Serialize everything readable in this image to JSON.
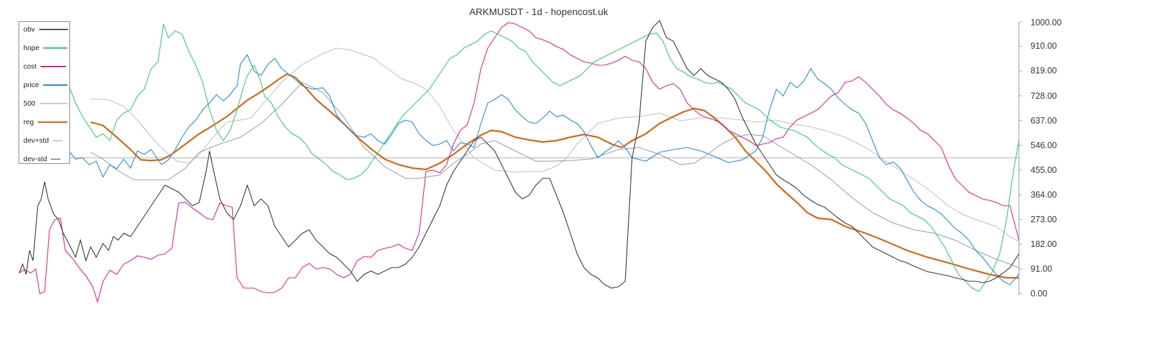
{
  "title": "ARKMUSDT - 1d - hopencost.uk",
  "legend": [
    {
      "label": "obv",
      "color": "#555555"
    },
    {
      "label": "hope",
      "color": "#2ecc71"
    },
    {
      "label": "cost",
      "color": "#e0218a"
    },
    {
      "label": "price",
      "color": "#1e88e5"
    },
    {
      "label": "500",
      "color": "#c8c8c8"
    },
    {
      "label": "reg",
      "color": "#d9630a"
    },
    {
      "label": "dev+std",
      "color": "#c5ccd3"
    },
    {
      "label": "dev-std",
      "color": "#8e9aa5"
    }
  ],
  "y_axis": {
    "ticks": [
      "1000.00",
      "910.00",
      "819.00",
      "728.00",
      "637.00",
      "546.00",
      "455.00",
      "364.00",
      "273.00",
      "182.00",
      "91.00",
      "0.00"
    ]
  },
  "chart_data": {
    "type": "line",
    "title": "ARKMUSDT - 1d - hopencost.uk",
    "xlabel": "",
    "ylabel": "",
    "ylim": [
      0,
      1000
    ],
    "y_ticks": [
      1000,
      910,
      819,
      728,
      637,
      546,
      455,
      364,
      273,
      182,
      91,
      0
    ],
    "y_axis_position": "right",
    "grid": false,
    "legend_position": "upper left",
    "x_note": "approx. 280 daily samples, no x tick labels shown; values sampled at ~14 evenly spaced positions",
    "x": [
      0,
      1,
      2,
      3,
      4,
      5,
      6,
      7,
      8,
      9,
      10,
      11,
      12,
      13
    ],
    "series": [
      {
        "name": "obv",
        "values": [
          80,
          350,
          120,
          200,
          380,
          300,
          140,
          90,
          90,
          560,
          330,
          30,
          980,
          140
        ]
      },
      {
        "name": "hope",
        "values": [
          800,
          560,
          990,
          760,
          840,
          520,
          480,
          620,
          980,
          920,
          820,
          810,
          500,
          560
        ]
      },
      {
        "name": "cost",
        "values": [
          80,
          320,
          210,
          330,
          60,
          200,
          210,
          990,
          960,
          600,
          800,
          360,
          180,
          360
        ]
      },
      {
        "name": "price",
        "values": [
          560,
          460,
          700,
          580,
          820,
          460,
          470,
          740,
          500,
          480,
          760,
          240,
          90,
          80
        ]
      },
      {
        "name": "500",
        "values": [
          500,
          500,
          500,
          500,
          500,
          500,
          500,
          500,
          500,
          500,
          500,
          500,
          500,
          500
        ]
      },
      {
        "name": "reg",
        "values": [
          630,
          490,
          580,
          790,
          700,
          470,
          450,
          610,
          560,
          560,
          680,
          300,
          110,
          30
        ]
      },
      {
        "name": "dev+std",
        "values": [
          710,
          560,
          670,
          880,
          830,
          560,
          500,
          650,
          630,
          620,
          780,
          360,
          150,
          60
        ]
      },
      {
        "name": "dev-std",
        "values": [
          540,
          440,
          500,
          700,
          640,
          420,
          410,
          520,
          490,
          490,
          600,
          240,
          60,
          10
        ]
      }
    ]
  }
}
